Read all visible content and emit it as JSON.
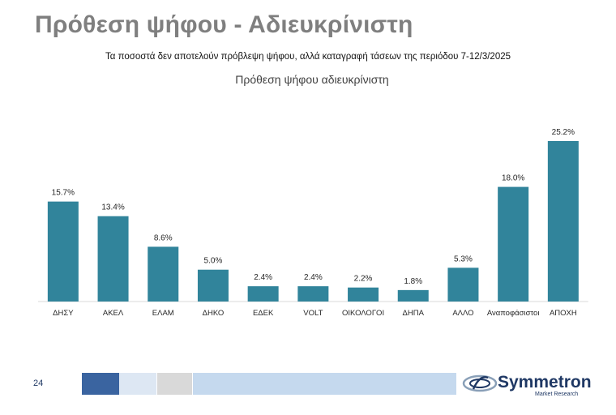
{
  "header": {
    "title": "Πρόθεση ψήφου - Αδιευκρίνιστη",
    "subtitle": "Τα ποσοστά δεν αποτελούν πρόβλεψη ψήφου, αλλά καταγραφή τάσεων της περιόδου 7-12/3/2025"
  },
  "chart_data": {
    "type": "bar",
    "title": "Πρόθεση ψήφου αδιευκρίνιστη",
    "categories": [
      "ΔΗΣΥ",
      "ΑΚΕΛ",
      "ΕΛΑΜ",
      "ΔΗΚΟ",
      "ΕΔΕΚ",
      "VOLT",
      "ΟΙΚΟΛΟΓΟΙ",
      "ΔΗΠΑ",
      "ΑΛΛΟ",
      "Αναποφάσιστοι",
      "ΑΠΟΧΗ"
    ],
    "values": [
      15.7,
      13.4,
      8.6,
      5.0,
      2.4,
      2.4,
      2.2,
      1.8,
      5.3,
      18.0,
      25.2
    ],
    "value_labels": [
      "15.7%",
      "13.4%",
      "8.6%",
      "5.0%",
      "2.4%",
      "2.4%",
      "2.2%",
      "1.8%",
      "5.3%",
      "18.0%",
      "25.2%"
    ],
    "bar_color": "#31849b",
    "ylim": [
      0,
      25.2
    ],
    "grid": false,
    "legend": "none"
  },
  "footer": {
    "page_number": "24",
    "logo_name": "Symmetron",
    "logo_tagline": "Market Research",
    "colors": [
      "#3a64a0",
      "#dde7f3",
      "#d9d9d9",
      "#c5d9ee"
    ]
  }
}
